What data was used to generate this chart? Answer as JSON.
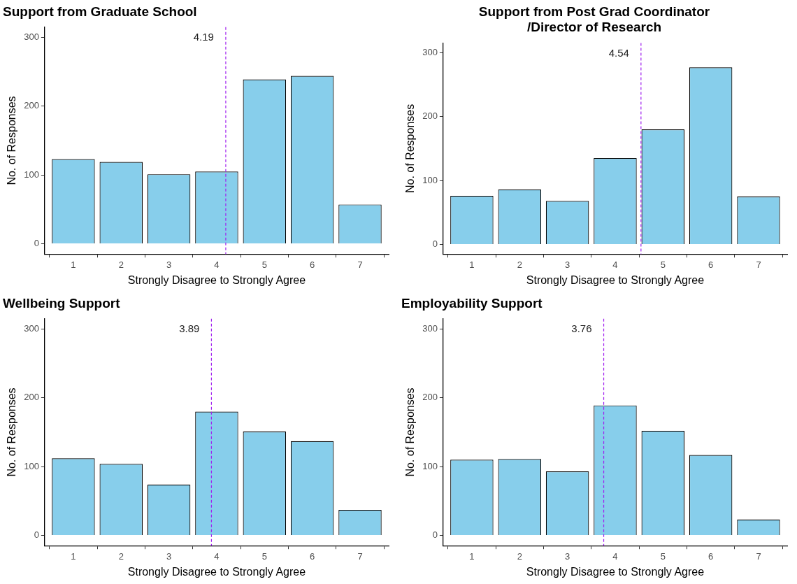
{
  "chart_data": [
    {
      "type": "bar",
      "title": "Support from Graduate School",
      "xlabel": "Strongly Disagree to Strongly Agree",
      "ylabel": "No. of Responses",
      "x": [
        1,
        2,
        3,
        4,
        5,
        6,
        7
      ],
      "values": [
        123,
        119,
        101,
        105,
        239,
        244,
        57
      ],
      "color": "#87ceeb",
      "xlim": [
        0.4,
        7.6
      ],
      "xticks": [
        1,
        2,
        3,
        4,
        5,
        6,
        7
      ],
      "ylim": [
        -15,
        315
      ],
      "yticks": [
        0,
        100,
        200,
        300
      ],
      "grid": false,
      "legend": false,
      "ref_lines": [
        {
          "axis": "x",
          "value": 4.19,
          "label": "4.19",
          "color": "#a020f0",
          "line_style": "dashed"
        }
      ]
    },
    {
      "type": "bar",
      "title": "Support from Post Grad Coordinator\n/Director of Research",
      "xlabel": "Strongly Disagree to Strongly Agree",
      "ylabel": "No. of Responses",
      "x": [
        1,
        2,
        3,
        4,
        5,
        6,
        7
      ],
      "values": [
        76,
        86,
        68,
        135,
        180,
        277,
        75
      ],
      "color": "#87ceeb",
      "xlim": [
        0.4,
        7.6
      ],
      "xticks": [
        1,
        2,
        3,
        4,
        5,
        6,
        7
      ],
      "ylim": [
        -15,
        315
      ],
      "yticks": [
        0,
        100,
        200,
        300
      ],
      "grid": false,
      "legend": false,
      "ref_lines": [
        {
          "axis": "x",
          "value": 4.54,
          "label": "4.54",
          "color": "#a020f0",
          "line_style": "dashed"
        }
      ]
    },
    {
      "type": "bar",
      "title": "Wellbeing Support",
      "xlabel": "Strongly Disagree to Strongly Agree",
      "ylabel": "No. of Responses",
      "x": [
        1,
        2,
        3,
        4,
        5,
        6,
        7
      ],
      "values": [
        112,
        104,
        74,
        180,
        151,
        137,
        37
      ],
      "color": "#87ceeb",
      "xlim": [
        0.4,
        7.6
      ],
      "xticks": [
        1,
        2,
        3,
        4,
        5,
        6,
        7
      ],
      "ylim": [
        -15,
        315
      ],
      "yticks": [
        0,
        100,
        200,
        300
      ],
      "grid": false,
      "legend": false,
      "ref_lines": [
        {
          "axis": "x",
          "value": 3.89,
          "label": "3.89",
          "color": "#a020f0",
          "line_style": "dashed"
        }
      ]
    },
    {
      "type": "bar",
      "title": "Employability Support",
      "xlabel": "Strongly Disagree to Strongly Agree",
      "ylabel": "No. of Responses",
      "x": [
        1,
        2,
        3,
        4,
        5,
        6,
        7
      ],
      "values": [
        110,
        111,
        93,
        189,
        152,
        117,
        23
      ],
      "color": "#87ceeb",
      "xlim": [
        0.4,
        7.6
      ],
      "xticks": [
        1,
        2,
        3,
        4,
        5,
        6,
        7
      ],
      "ylim": [
        -15,
        315
      ],
      "yticks": [
        0,
        100,
        200,
        300
      ],
      "grid": false,
      "legend": false,
      "ref_lines": [
        {
          "axis": "x",
          "value": 3.76,
          "label": "3.76",
          "color": "#a020f0",
          "line_style": "dashed"
        }
      ]
    }
  ]
}
